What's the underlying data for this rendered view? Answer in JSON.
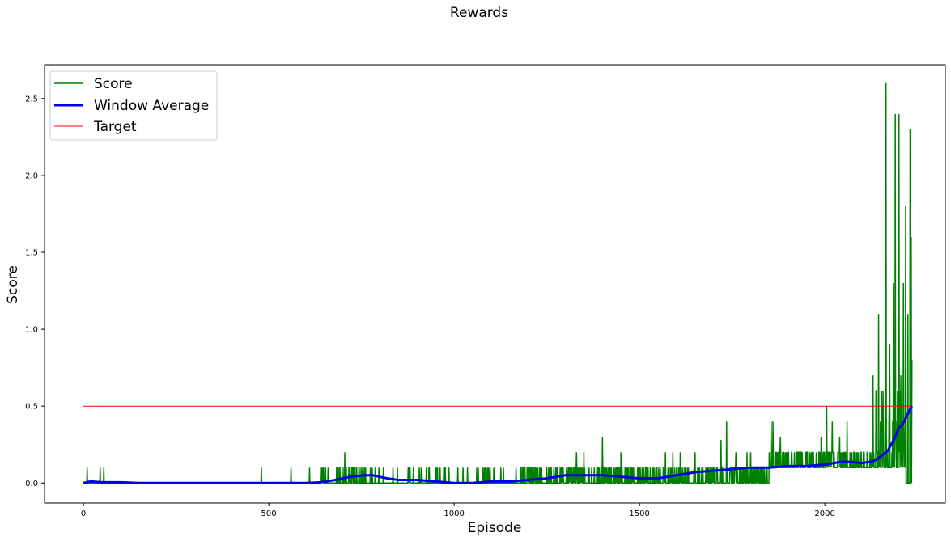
{
  "chart_data": {
    "type": "line",
    "title": "Rewards",
    "xlabel": "Episode",
    "ylabel": "Score",
    "xlim": [
      -105,
      2325
    ],
    "ylim": [
      -0.13,
      2.72
    ],
    "xticks": [
      0,
      500,
      1000,
      1500,
      2000
    ],
    "xtick_labels": [
      "0",
      "500",
      "1000",
      "1500",
      "2000"
    ],
    "yticks": [
      0.0,
      0.5,
      1.0,
      1.5,
      2.0,
      2.5
    ],
    "ytick_labels": [
      "0.0",
      "0.5",
      "1.0",
      "1.5",
      "2.0",
      "2.5"
    ],
    "grid": false,
    "legend_position": "top-left",
    "series": [
      {
        "name": "Score",
        "color": "#008000",
        "line_width": 1.5,
        "noise_segments": [
          {
            "x0": 0,
            "x1": 640,
            "levels": [
              0.0
            ],
            "prob": 1.0
          },
          {
            "x0": 640,
            "x1": 780,
            "levels": [
              0.0,
              0.1
            ],
            "prob": 0.55
          },
          {
            "x0": 780,
            "x1": 1000,
            "levels": [
              0.0,
              0.1
            ],
            "prob": 0.25
          },
          {
            "x0": 1000,
            "x1": 1180,
            "levels": [
              0.0,
              0.1
            ],
            "prob": 0.2
          },
          {
            "x0": 1180,
            "x1": 1450,
            "levels": [
              0.0,
              0.1
            ],
            "prob": 0.6
          },
          {
            "x0": 1450,
            "x1": 1850,
            "levels": [
              0.0,
              0.1
            ],
            "prob": 0.6
          },
          {
            "x0": 1850,
            "x1": 2130,
            "levels": [
              0.1,
              0.2
            ],
            "prob": 0.7
          },
          {
            "x0": 2130,
            "x1": 2218,
            "levels": [
              0.1,
              0.2,
              0.3,
              0.4,
              0.6
            ],
            "prob": 0.5
          }
        ],
        "spikes": [
          [
            10,
            0.1
          ],
          [
            45,
            0.1
          ],
          [
            55,
            0.1
          ],
          [
            480,
            0.1
          ],
          [
            560,
            0.1
          ],
          [
            610,
            0.1
          ],
          [
            705,
            0.2
          ],
          [
            1010,
            0.1
          ],
          [
            1330,
            0.2
          ],
          [
            1350,
            0.2
          ],
          [
            1400,
            0.3
          ],
          [
            1450,
            0.2
          ],
          [
            1570,
            0.2
          ],
          [
            1590,
            0.2
          ],
          [
            1610,
            0.2
          ],
          [
            1650,
            0.2
          ],
          [
            1720,
            0.28
          ],
          [
            1735,
            0.4
          ],
          [
            1760,
            0.2
          ],
          [
            1790,
            0.2
          ],
          [
            1800,
            0.2
          ],
          [
            1855,
            0.4
          ],
          [
            1860,
            0.4
          ],
          [
            1880,
            0.3
          ],
          [
            1990,
            0.3
          ],
          [
            2005,
            0.5
          ],
          [
            2020,
            0.4
          ],
          [
            2040,
            0.3
          ],
          [
            2060,
            0.4
          ],
          [
            2090,
            0.2
          ],
          [
            2130,
            0.7
          ],
          [
            2145,
            1.1
          ],
          [
            2155,
            0.5
          ],
          [
            2165,
            2.6
          ],
          [
            2175,
            0.9
          ],
          [
            2185,
            1.3
          ],
          [
            2190,
            2.4
          ],
          [
            2200,
            2.4
          ],
          [
            2205,
            0.7
          ],
          [
            2212,
            1.3
          ],
          [
            2218,
            1.8
          ],
          [
            2224,
            1.1
          ],
          [
            2230,
            2.3
          ],
          [
            2233,
            1.6
          ],
          [
            2235,
            0.8
          ]
        ]
      },
      {
        "name": "Window Average",
        "color": "#0000ee",
        "line_width": 3,
        "x": [
          0,
          20,
          50,
          100,
          150,
          200,
          300,
          400,
          500,
          600,
          640,
          680,
          720,
          760,
          780,
          800,
          820,
          850,
          900,
          950,
          1000,
          1050,
          1100,
          1150,
          1200,
          1250,
          1300,
          1350,
          1400,
          1450,
          1500,
          1550,
          1600,
          1650,
          1700,
          1750,
          1800,
          1850,
          1900,
          1950,
          2000,
          2050,
          2100,
          2130,
          2150,
          2170,
          2190,
          2200,
          2210,
          2220,
          2230,
          2235
        ],
        "y": [
          0.0,
          0.01,
          0.005,
          0.005,
          0.0,
          0.0,
          0.0,
          0.0,
          0.0,
          0.0,
          0.005,
          0.02,
          0.04,
          0.05,
          0.05,
          0.04,
          0.03,
          0.02,
          0.02,
          0.01,
          0.0,
          0.0,
          0.01,
          0.01,
          0.02,
          0.03,
          0.05,
          0.05,
          0.05,
          0.04,
          0.03,
          0.03,
          0.05,
          0.07,
          0.08,
          0.09,
          0.1,
          0.1,
          0.11,
          0.11,
          0.12,
          0.14,
          0.13,
          0.14,
          0.17,
          0.21,
          0.3,
          0.36,
          0.38,
          0.43,
          0.48,
          0.5
        ]
      },
      {
        "name": "Target",
        "color": "#ff0000",
        "line_width": 1,
        "x": [
          0,
          2235
        ],
        "y": [
          0.5,
          0.5
        ]
      }
    ]
  }
}
